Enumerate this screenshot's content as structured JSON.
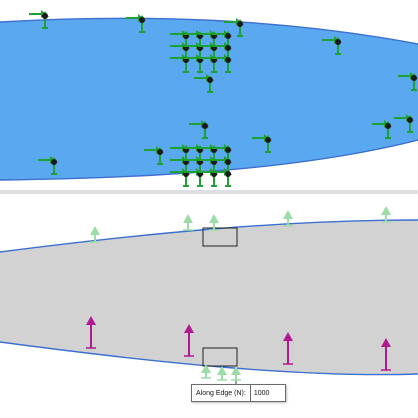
{
  "views": {
    "top": {
      "face_color": "#5aa8ef",
      "edge_color": "#3c6fd0",
      "glyph_color": "#1ea036"
    },
    "bottom": {
      "face_color": "#d2d2d2",
      "edge_color": "#3c6fd0",
      "load_arrow_color": "#b0198f"
    }
  },
  "callout": {
    "label": "Along Edge (N):",
    "value": "1000"
  }
}
